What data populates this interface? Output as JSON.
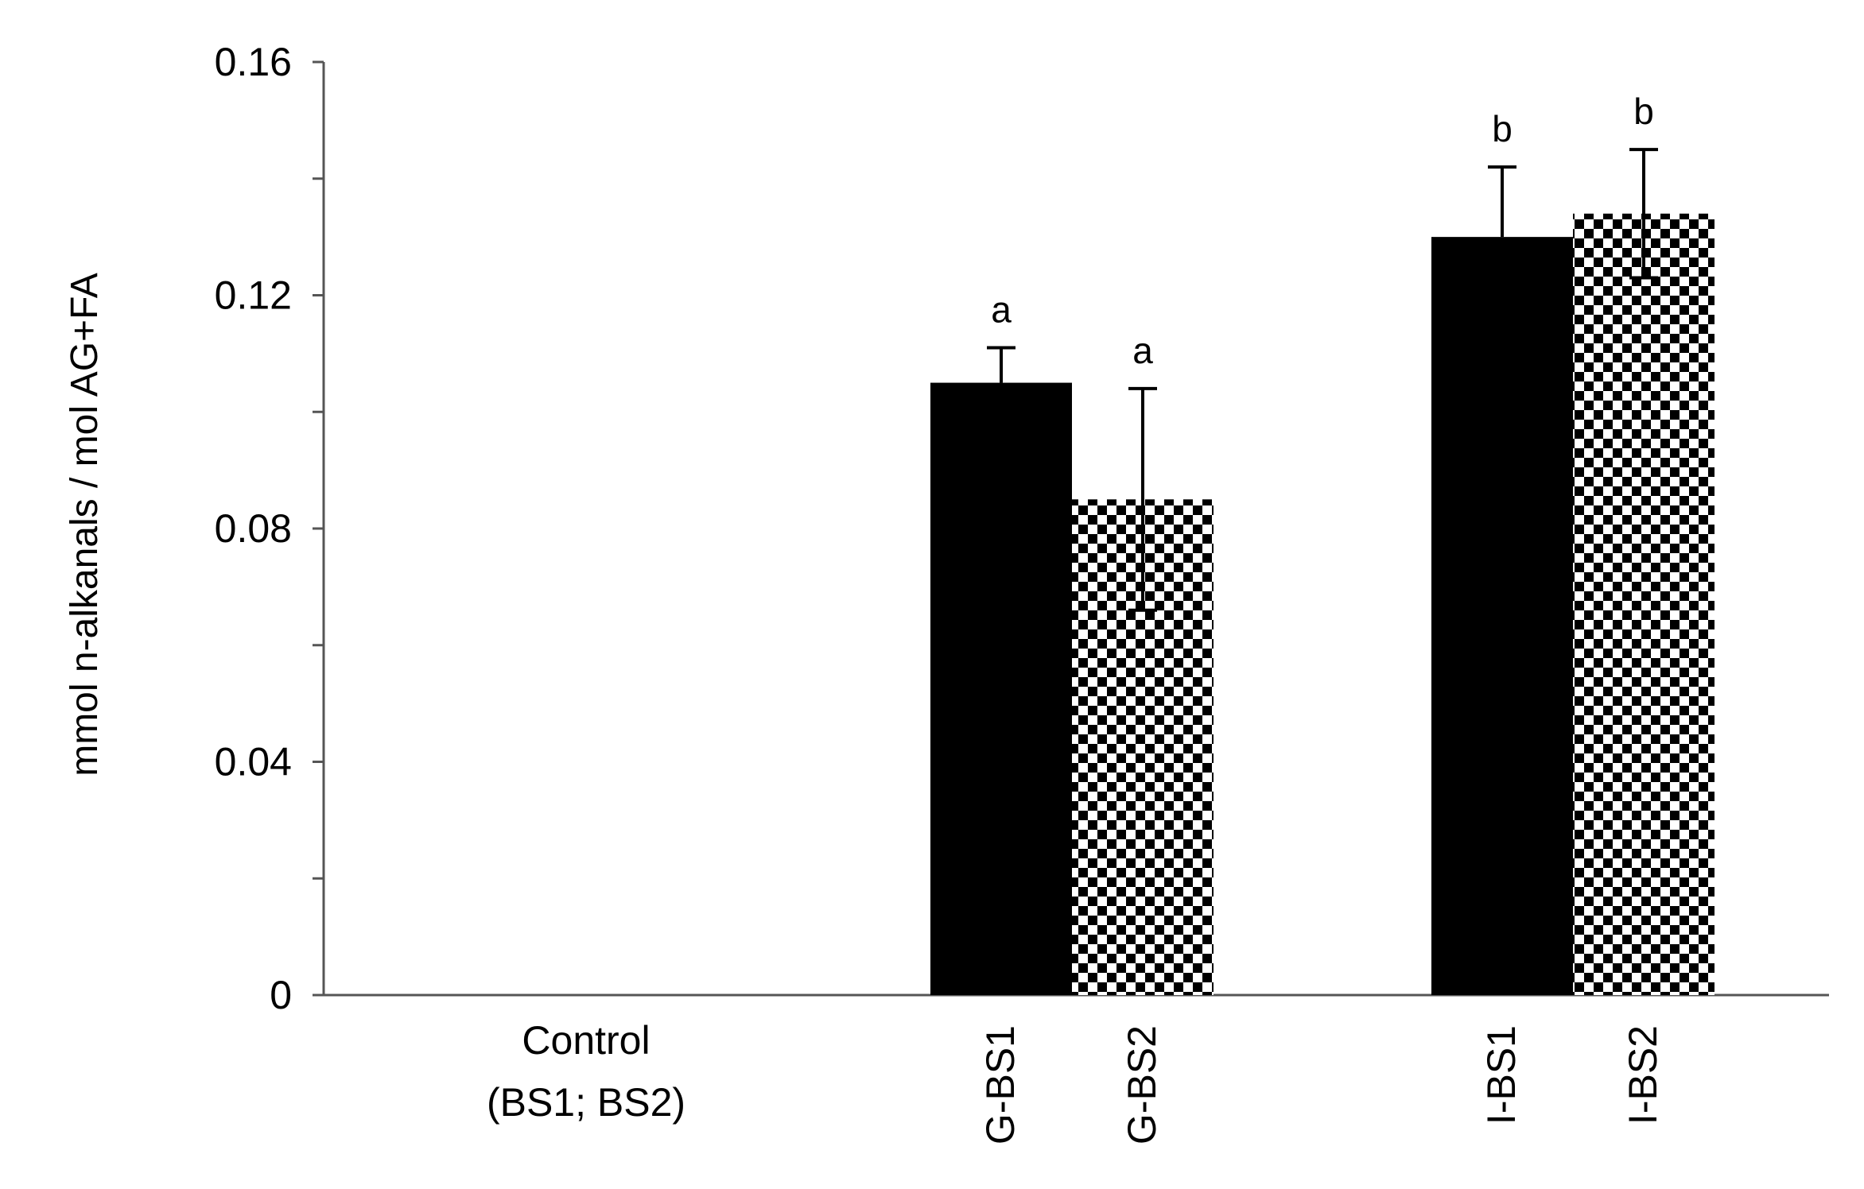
{
  "chart_data": {
    "type": "bar",
    "ylabel": "mmol n-alkanals / mol AG+FA",
    "ylim": [
      0,
      0.16
    ],
    "yticks_labeled": [
      "0",
      "0.04",
      "0.08",
      "0.12",
      "0.16"
    ],
    "ytick_step_minor": 0.02,
    "groups": [
      {
        "label_lines": [
          "Control",
          "(BS1; BS2)"
        ],
        "bars": []
      },
      {
        "label_lines": [],
        "bars": [
          {
            "label": "G-BS1",
            "value": 0.105,
            "error": 0.006,
            "sig": "a",
            "pattern": "solid"
          },
          {
            "label": "G-BS2",
            "value": 0.085,
            "error": 0.019,
            "sig": "a",
            "pattern": "checker"
          }
        ]
      },
      {
        "label_lines": [],
        "bars": [
          {
            "label": "I-BS1",
            "value": 0.13,
            "error": 0.012,
            "sig": "b",
            "pattern": "solid"
          },
          {
            "label": "I-BS2",
            "value": 0.134,
            "error": 0.011,
            "sig": "b",
            "pattern": "checker"
          }
        ]
      }
    ],
    "colors": {
      "bar": "#000000",
      "axis": "#555555",
      "text": "#000000"
    },
    "grid": false,
    "legend": "none"
  }
}
